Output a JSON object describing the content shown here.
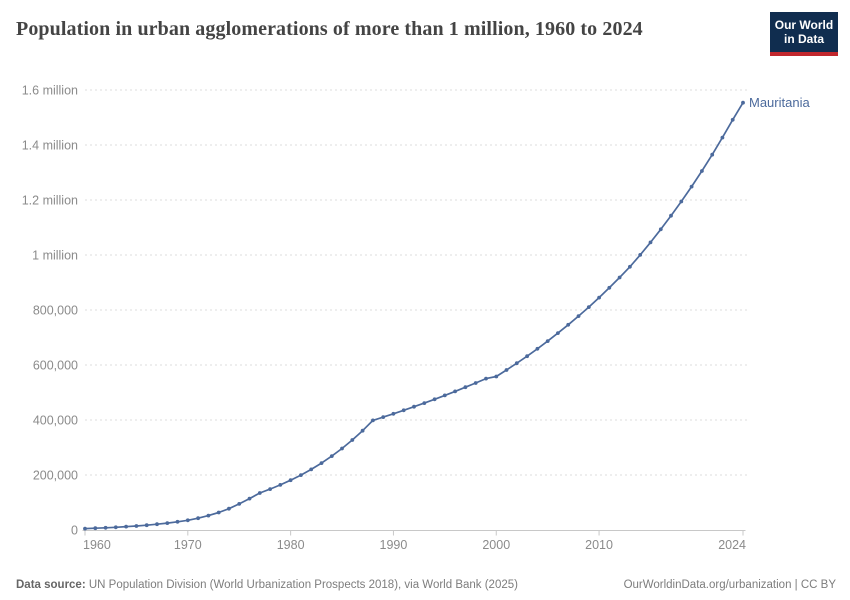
{
  "header": {
    "title": "Population in urban agglomerations of more than 1 million, 1960 to 2024",
    "logo": {
      "line1": "Our World",
      "line2": "in Data"
    }
  },
  "footer": {
    "source_label": "Data source:",
    "source_text": " UN Population Division (World Urbanization Prospects 2018), via World Bank (2025)",
    "link_text": "OurWorldinData.org/urbanization | CC BY"
  },
  "colors": {
    "line": "#4c6a9c",
    "grid": "#dddddd",
    "axis": "#c8c8c8",
    "tick_label": "#8b8b8b",
    "title": "#444444",
    "logo_bg": "#102d4f",
    "logo_red": "#c1272d",
    "footer_text": "#777777"
  },
  "chart_data": {
    "type": "line",
    "title": "Population in urban agglomerations of more than 1 million, 1960 to 2024",
    "entity": "Mauritania",
    "xlabel": "",
    "ylabel": "",
    "grid": "horizontal-dashed",
    "legend_position": "end-of-line-label",
    "xlim": [
      1960,
      2024
    ],
    "ylim": [
      0,
      1600000
    ],
    "x": [
      1960,
      1961,
      1962,
      1963,
      1964,
      1965,
      1966,
      1967,
      1968,
      1969,
      1970,
      1971,
      1972,
      1973,
      1974,
      1975,
      1976,
      1977,
      1978,
      1979,
      1980,
      1981,
      1982,
      1983,
      1984,
      1985,
      1986,
      1987,
      1988,
      1989,
      1990,
      1991,
      1992,
      1993,
      1994,
      1995,
      1996,
      1997,
      1998,
      1999,
      2000,
      2001,
      2002,
      2003,
      2004,
      2005,
      2006,
      2007,
      2008,
      2009,
      2010,
      2011,
      2012,
      2013,
      2014,
      2015,
      2016,
      2017,
      2018,
      2019,
      2020,
      2021,
      2022,
      2023,
      2024
    ],
    "values": [
      5000,
      6400,
      8100,
      10000,
      12200,
      14700,
      17600,
      21000,
      25000,
      29700,
      35200,
      43000,
      52200,
      63500,
      77500,
      95000,
      114000,
      134700,
      148600,
      164100,
      181000,
      199800,
      220500,
      243400,
      268600,
      296500,
      327200,
      361200,
      398700,
      410500,
      422700,
      435300,
      448300,
      461600,
      475400,
      489500,
      504100,
      519100,
      534600,
      550500,
      558200,
      581800,
      606400,
      632100,
      658900,
      686800,
      715900,
      746200,
      777800,
      810700,
      845100,
      880900,
      918200,
      957100,
      1000500,
      1045900,
      1093300,
      1142900,
      1194700,
      1248900,
      1305600,
      1364900,
      1426900,
      1491700,
      1553800
    ],
    "yticks": [
      {
        "value": 0,
        "label": "0"
      },
      {
        "value": 200000,
        "label": "200,000"
      },
      {
        "value": 400000,
        "label": "400,000"
      },
      {
        "value": 600000,
        "label": "600,000"
      },
      {
        "value": 800000,
        "label": "800,000"
      },
      {
        "value": 1000000,
        "label": "1 million"
      },
      {
        "value": 1200000,
        "label": "1.2 million"
      },
      {
        "value": 1400000,
        "label": "1.4 million"
      },
      {
        "value": 1600000,
        "label": "1.6 million"
      }
    ],
    "xticks": [
      {
        "value": 1960,
        "label": "1960"
      },
      {
        "value": 1970,
        "label": "1970"
      },
      {
        "value": 1980,
        "label": "1980"
      },
      {
        "value": 1990,
        "label": "1990"
      },
      {
        "value": 2000,
        "label": "2000"
      },
      {
        "value": 2010,
        "label": "2010"
      },
      {
        "value": 2024,
        "label": "2024"
      }
    ]
  }
}
